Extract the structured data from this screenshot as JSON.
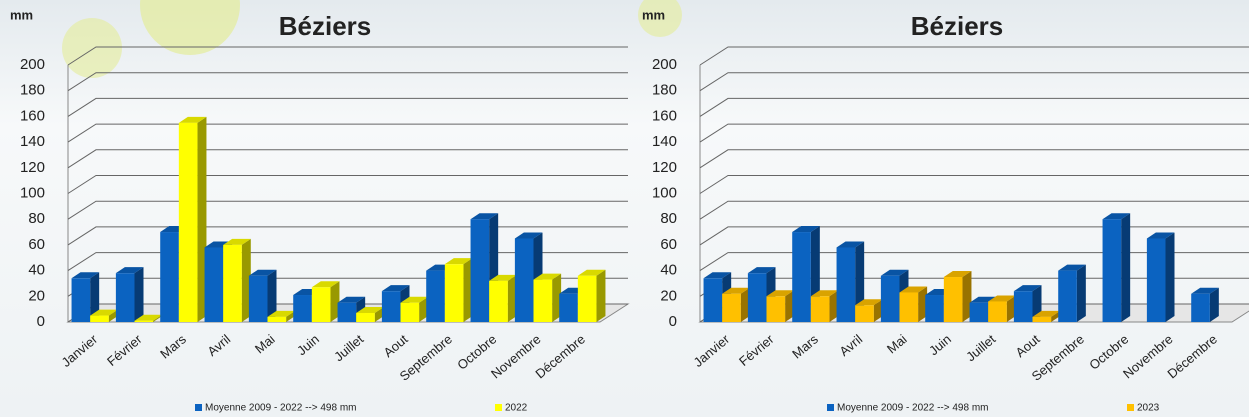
{
  "chart_data": [
    {
      "type": "bar3d",
      "title": "Béziers",
      "y_label": "mm",
      "categories": [
        "Janvier",
        "Février",
        "Mars",
        "Avril",
        "Mai",
        "Juin",
        "Juillet",
        "Aout",
        "Septembre",
        "Octobre",
        "Novembre",
        "Décembre"
      ],
      "series": [
        {
          "name": "Moyenne 2009 - 2022 --> 498 mm",
          "color": "#0b63c1",
          "values": [
            34,
            38,
            70,
            58,
            36,
            21,
            15,
            24,
            40,
            80,
            65,
            22
          ]
        },
        {
          "name": "2022",
          "color": "#ffff00",
          "values": [
            5,
            1,
            155,
            60,
            4,
            27,
            7,
            15,
            45,
            32,
            33,
            36
          ]
        }
      ],
      "ylim": [
        0,
        200
      ],
      "yticks": [
        0,
        20,
        40,
        60,
        80,
        100,
        120,
        140,
        160,
        180,
        200
      ],
      "grid": true
    },
    {
      "type": "bar3d",
      "title": "Béziers",
      "y_label": "mm",
      "categories": [
        "Janvier",
        "Février",
        "Mars",
        "Avril",
        "Mai",
        "Juin",
        "Juillet",
        "Aout",
        "Septembre",
        "Octobre",
        "Novembre",
        "Décembre"
      ],
      "series": [
        {
          "name": "Moyenne 2009 - 2022 --> 498 mm",
          "color": "#0b63c1",
          "values": [
            34,
            38,
            70,
            58,
            36,
            21,
            15,
            24,
            40,
            80,
            65,
            22
          ]
        },
        {
          "name": "2023",
          "color": "#ffc000",
          "values": [
            22,
            20,
            20,
            13,
            23,
            35,
            16,
            4,
            null,
            null,
            null,
            null
          ]
        }
      ],
      "ylim": [
        0,
        200
      ],
      "yticks": [
        0,
        20,
        40,
        60,
        80,
        100,
        120,
        140,
        160,
        180,
        200
      ],
      "grid": true
    }
  ]
}
